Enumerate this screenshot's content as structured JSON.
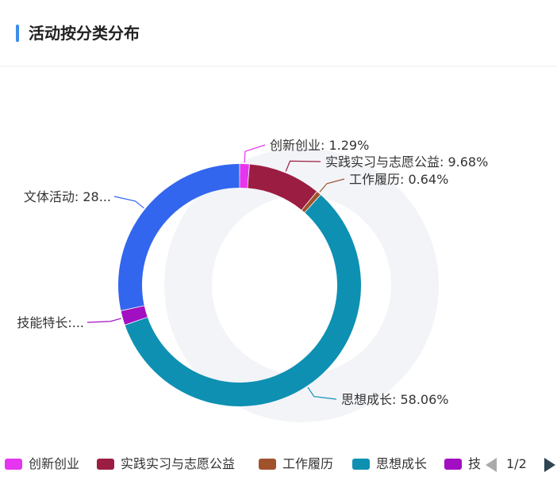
{
  "header": {
    "title": "活动按分类分布",
    "accent_color": "#3d8ee8"
  },
  "chart_data": {
    "type": "pie",
    "variant": "donut",
    "title": "活动按分类分布",
    "slices": [
      {
        "name": "创新创业",
        "value": 1.29,
        "label": "创新创业: 1.29%",
        "color": "#e535f0"
      },
      {
        "name": "实践实习与志愿公益",
        "value": 9.68,
        "label": "实践实习与志愿公益: 9.68%",
        "color": "#9c1d42"
      },
      {
        "name": "工作履历",
        "value": 0.64,
        "label": "工作履历: 0.64%",
        "color": "#a0522d"
      },
      {
        "name": "思想成长",
        "value": 58.06,
        "label": "思想成长: 58.06%",
        "color": "#0e90b2"
      },
      {
        "name": "技能特长",
        "value": 1.94,
        "label": "技能特长:...",
        "color": "#a20fc2"
      },
      {
        "name": "文体活动",
        "value": 28.39,
        "label": "文体活动: 28...",
        "color": "#3366ee"
      }
    ]
  },
  "legend": {
    "items": [
      "创新创业",
      "实践实习与志愿公益",
      "工作履历",
      "思想成长",
      "技"
    ],
    "page": "1/2"
  }
}
